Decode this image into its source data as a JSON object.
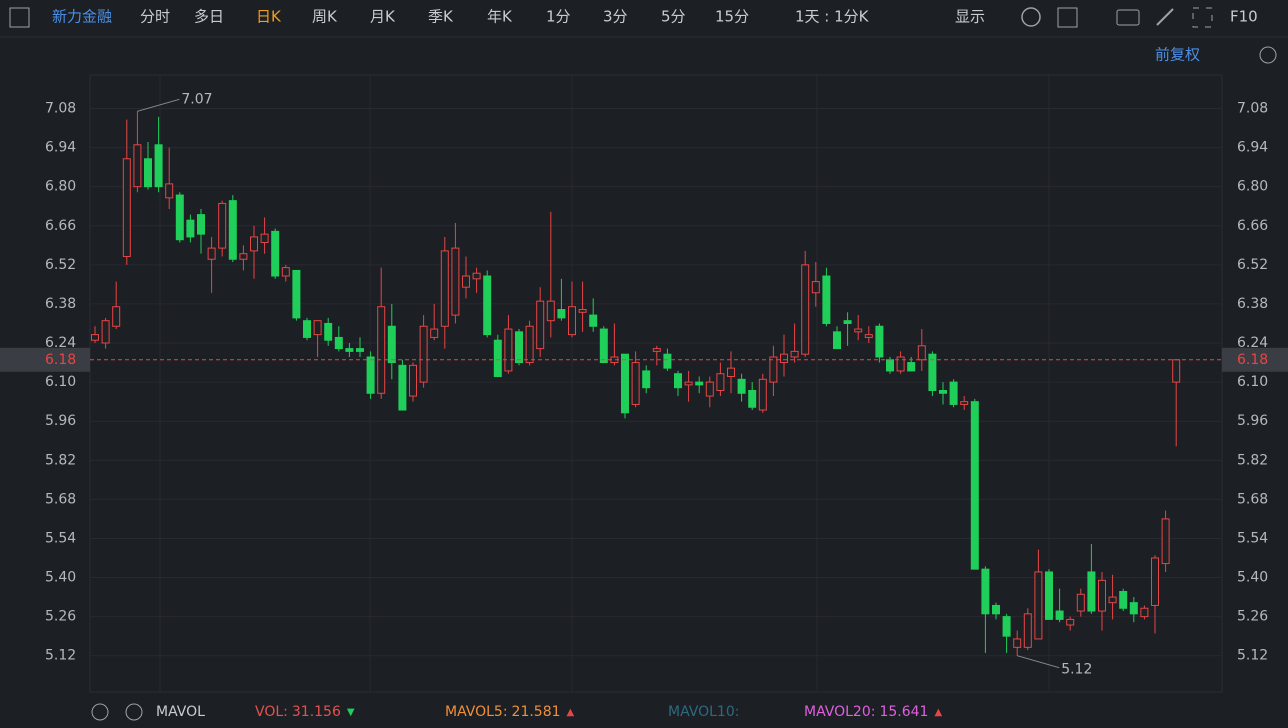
{
  "toolbar": {
    "items": [
      "新力金融",
      "分时",
      "多日",
      "日K",
      "周K",
      "月K",
      "季K",
      "年K",
      "1分",
      "3分",
      "5分",
      "15分",
      "1天 : 1分K"
    ],
    "active": 3,
    "display": "显示",
    "f10": "F10",
    "adjust": "前复权"
  },
  "indicator": {
    "name": "MAVOL",
    "items": [
      {
        "label": "VOL:",
        "value": "31.156",
        "color": "#e85050"
      },
      {
        "label": "MAVOL5:",
        "value": "21.581",
        "color": "#f0903a"
      },
      {
        "label": "MAVOL10:",
        "value": null,
        "color": "#2d6a80"
      },
      {
        "label": "MAVOL20:",
        "value": "15.641",
        "color": "#e060e0"
      }
    ]
  },
  "chart_data": {
    "type": "candlestick",
    "up_color": "#e84545",
    "down_color": "#1fcf5a",
    "ylim": [
      4.99,
      7.2
    ],
    "yticks": [
      7.08,
      6.94,
      {
        "value": 6.8,
        "label": "6.80"
      },
      6.66,
      6.52,
      6.38,
      6.24,
      {
        "value": 6.1,
        "label": "6.10"
      },
      5.96,
      5.82,
      5.68,
      5.54,
      {
        "value": 5.4,
        "label": "5.40"
      },
      5.26,
      5.12
    ],
    "last_price": 6.18,
    "open": [
      6.25,
      6.24,
      6.3,
      6.55,
      6.8,
      6.9,
      6.95,
      6.76,
      6.77,
      6.68,
      6.7,
      6.54,
      6.58,
      6.75,
      6.54,
      6.57,
      6.6,
      6.64,
      6.48,
      6.5,
      6.32,
      6.27,
      6.31,
      6.26,
      6.22,
      6.22,
      6.19,
      6.06,
      6.3,
      6.16,
      6.05,
      6.1,
      6.26,
      6.3,
      6.34,
      6.44,
      6.47,
      6.48,
      6.25,
      6.14,
      6.28,
      6.17,
      6.22,
      6.32,
      6.36,
      6.27,
      6.35,
      6.34,
      6.29,
      6.17,
      6.2,
      6.02,
      6.14,
      6.21,
      6.2,
      6.13,
      6.09,
      6.1,
      6.05,
      6.07,
      6.12,
      6.11,
      6.07,
      6.0,
      6.1,
      6.17,
      6.19,
      6.2,
      6.42,
      6.48,
      6.28,
      6.32,
      6.28,
      6.26,
      6.3,
      6.18,
      6.14,
      6.17,
      6.18,
      6.2,
      6.07,
      6.1,
      6.02,
      6.03,
      5.43,
      5.3,
      5.26,
      5.15,
      5.15,
      5.18,
      5.42,
      5.28,
      5.23,
      5.28,
      5.42,
      5.28,
      5.31,
      5.35,
      5.31,
      5.26,
      5.3,
      5.45,
      6.1
    ],
    "high": [
      6.3,
      6.33,
      6.46,
      7.04,
      7.07,
      6.96,
      7.05,
      6.94,
      6.78,
      6.7,
      6.72,
      6.62,
      6.75,
      6.77,
      6.59,
      6.66,
      6.69,
      6.65,
      6.52,
      6.5,
      6.33,
      6.32,
      6.33,
      6.3,
      6.24,
      6.26,
      6.21,
      6.51,
      6.38,
      6.18,
      6.17,
      6.34,
      6.38,
      6.62,
      6.67,
      6.55,
      6.51,
      6.5,
      6.27,
      6.34,
      6.29,
      6.32,
      6.44,
      6.71,
      6.47,
      6.46,
      6.46,
      6.4,
      6.3,
      6.31,
      6.2,
      6.21,
      6.16,
      6.23,
      6.22,
      6.14,
      6.14,
      6.12,
      6.12,
      6.17,
      6.21,
      6.13,
      6.1,
      6.13,
      6.23,
      6.27,
      6.31,
      6.57,
      6.53,
      6.51,
      6.3,
      6.35,
      6.34,
      6.3,
      6.31,
      6.19,
      6.21,
      6.19,
      6.29,
      6.21,
      6.1,
      6.11,
      6.05,
      6.04,
      5.44,
      5.31,
      5.27,
      5.21,
      5.29,
      5.5,
      5.43,
      5.36,
      5.26,
      5.36,
      5.52,
      5.42,
      5.41,
      5.36,
      5.33,
      5.3,
      5.48,
      5.64,
      6.18
    ],
    "low": [
      6.24,
      6.22,
      6.29,
      6.52,
      6.78,
      6.79,
      6.78,
      6.72,
      6.6,
      6.6,
      6.56,
      6.42,
      6.55,
      6.53,
      6.5,
      6.47,
      6.56,
      6.47,
      6.46,
      6.32,
      6.25,
      6.19,
      6.23,
      6.21,
      6.19,
      6.19,
      6.04,
      6.04,
      6.11,
      6.0,
      6.03,
      6.08,
      6.25,
      6.22,
      6.31,
      6.4,
      6.42,
      6.26,
      6.12,
      6.13,
      6.16,
      6.16,
      6.19,
      6.26,
      6.32,
      6.26,
      6.28,
      6.28,
      6.17,
      6.16,
      5.97,
      6.01,
      6.06,
      6.16,
      6.14,
      6.05,
      6.03,
      6.06,
      6.01,
      6.05,
      6.06,
      6.03,
      6.0,
      5.99,
      6.05,
      6.12,
      6.17,
      6.19,
      6.37,
      6.3,
      6.22,
      6.23,
      6.25,
      6.24,
      6.17,
      6.13,
      6.13,
      6.14,
      6.14,
      6.05,
      6.02,
      6.01,
      6.0,
      5.43,
      5.13,
      5.25,
      5.13,
      5.12,
      5.14,
      5.18,
      5.25,
      5.24,
      5.21,
      5.26,
      5.27,
      5.21,
      5.25,
      5.28,
      5.24,
      5.25,
      5.2,
      5.42,
      5.87
    ],
    "close": [
      6.27,
      6.32,
      6.37,
      6.9,
      6.95,
      6.8,
      6.8,
      6.81,
      6.61,
      6.62,
      6.63,
      6.58,
      6.74,
      6.54,
      6.56,
      6.62,
      6.63,
      6.48,
      6.51,
      6.33,
      6.26,
      6.32,
      6.25,
      6.22,
      6.21,
      6.21,
      6.06,
      6.37,
      6.17,
      6.0,
      6.16,
      6.3,
      6.29,
      6.57,
      6.58,
      6.48,
      6.49,
      6.27,
      6.12,
      6.29,
      6.17,
      6.3,
      6.39,
      6.39,
      6.33,
      6.37,
      6.36,
      6.3,
      6.17,
      6.19,
      5.99,
      6.17,
      6.08,
      6.22,
      6.15,
      6.08,
      6.1,
      6.09,
      6.1,
      6.13,
      6.15,
      6.06,
      6.01,
      6.11,
      6.19,
      6.2,
      6.21,
      6.52,
      6.46,
      6.31,
      6.22,
      6.31,
      6.29,
      6.27,
      6.19,
      6.14,
      6.19,
      6.14,
      6.23,
      6.07,
      6.06,
      6.02,
      6.03,
      5.43,
      5.27,
      5.27,
      5.19,
      5.18,
      5.27,
      5.42,
      5.25,
      5.25,
      5.25,
      5.34,
      5.28,
      5.39,
      5.33,
      5.29,
      5.27,
      5.29,
      5.47,
      5.61,
      6.18
    ]
  }
}
